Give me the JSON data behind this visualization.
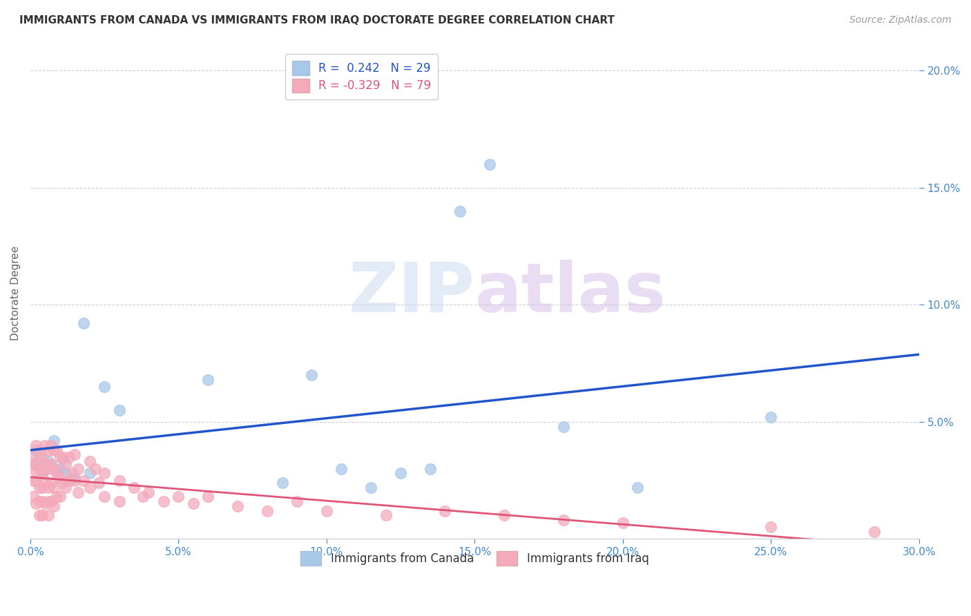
{
  "title": "IMMIGRANTS FROM CANADA VS IMMIGRANTS FROM IRAQ DOCTORATE DEGREE CORRELATION CHART",
  "source": "Source: ZipAtlas.com",
  "ylabel": "Doctorate Degree",
  "xlim": [
    0.0,
    0.3
  ],
  "ylim": [
    0.0,
    0.21
  ],
  "xticks": [
    0.0,
    0.05,
    0.1,
    0.15,
    0.2,
    0.25,
    0.3
  ],
  "yticks_left": [
    0.0,
    0.05,
    0.1,
    0.15,
    0.2
  ],
  "yticks_right": [
    0.05,
    0.1,
    0.15,
    0.2
  ],
  "canada_R": 0.242,
  "canada_N": 29,
  "iraq_R": -0.329,
  "iraq_N": 79,
  "canada_color": "#a8c8e8",
  "iraq_color": "#f4aabb",
  "canada_line_color": "#2255cc",
  "iraq_line_color": "#e05577",
  "background_color": "#ffffff",
  "grid_color": "#cccccc",
  "watermark_zip": "ZIP",
  "watermark_atlas": "atlas",
  "canada_x": [
    0.001,
    0.002,
    0.003,
    0.004,
    0.005,
    0.006,
    0.007,
    0.008,
    0.009,
    0.01,
    0.011,
    0.012,
    0.015,
    0.018,
    0.02,
    0.025,
    0.03,
    0.06,
    0.085,
    0.095,
    0.105,
    0.115,
    0.125,
    0.135,
    0.145,
    0.155,
    0.18,
    0.205,
    0.25
  ],
  "canada_y": [
    0.032,
    0.038,
    0.035,
    0.028,
    0.03,
    0.033,
    0.031,
    0.042,
    0.029,
    0.03,
    0.034,
    0.028,
    0.026,
    0.092,
    0.028,
    0.065,
    0.055,
    0.068,
    0.024,
    0.07,
    0.03,
    0.022,
    0.028,
    0.03,
    0.14,
    0.16,
    0.048,
    0.022,
    0.052
  ],
  "iraq_x": [
    0.001,
    0.001,
    0.001,
    0.001,
    0.002,
    0.002,
    0.002,
    0.002,
    0.003,
    0.003,
    0.003,
    0.003,
    0.003,
    0.004,
    0.004,
    0.004,
    0.004,
    0.004,
    0.005,
    0.005,
    0.005,
    0.005,
    0.006,
    0.006,
    0.006,
    0.006,
    0.006,
    0.007,
    0.007,
    0.007,
    0.007,
    0.008,
    0.008,
    0.008,
    0.008,
    0.009,
    0.009,
    0.009,
    0.01,
    0.01,
    0.01,
    0.011,
    0.011,
    0.012,
    0.012,
    0.013,
    0.013,
    0.014,
    0.015,
    0.015,
    0.016,
    0.016,
    0.018,
    0.02,
    0.02,
    0.022,
    0.023,
    0.025,
    0.025,
    0.03,
    0.03,
    0.035,
    0.038,
    0.04,
    0.045,
    0.05,
    0.055,
    0.06,
    0.07,
    0.08,
    0.09,
    0.1,
    0.12,
    0.14,
    0.16,
    0.18,
    0.2,
    0.25,
    0.285
  ],
  "iraq_y": [
    0.035,
    0.03,
    0.025,
    0.018,
    0.04,
    0.032,
    0.025,
    0.015,
    0.038,
    0.03,
    0.022,
    0.016,
    0.01,
    0.035,
    0.028,
    0.022,
    0.016,
    0.01,
    0.04,
    0.032,
    0.025,
    0.015,
    0.038,
    0.03,
    0.022,
    0.016,
    0.01,
    0.04,
    0.032,
    0.024,
    0.016,
    0.038,
    0.03,
    0.022,
    0.014,
    0.038,
    0.028,
    0.018,
    0.035,
    0.026,
    0.018,
    0.035,
    0.024,
    0.032,
    0.022,
    0.035,
    0.025,
    0.028,
    0.036,
    0.025,
    0.03,
    0.02,
    0.025,
    0.033,
    0.022,
    0.03,
    0.024,
    0.028,
    0.018,
    0.025,
    0.016,
    0.022,
    0.018,
    0.02,
    0.016,
    0.018,
    0.015,
    0.018,
    0.014,
    0.012,
    0.016,
    0.012,
    0.01,
    0.012,
    0.01,
    0.008,
    0.007,
    0.005,
    0.003
  ]
}
